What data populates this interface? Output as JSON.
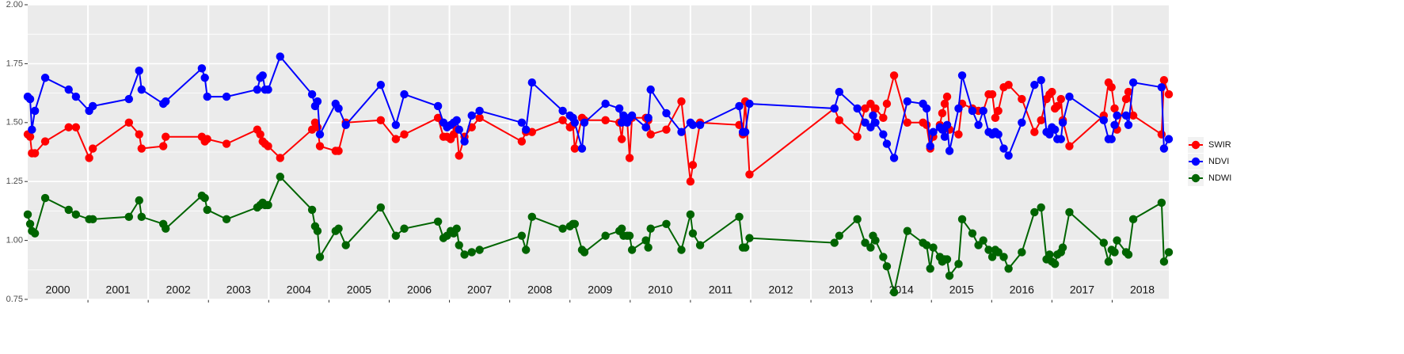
{
  "chart_data": {
    "type": "line",
    "x": [
      2000.0,
      2000.04,
      2000.07,
      2000.12,
      2000.29,
      2000.68,
      2000.8,
      2001.02,
      2001.08,
      2001.68,
      2001.85,
      2001.89,
      2002.25,
      2002.29,
      2002.89,
      2002.94,
      2002.98,
      2003.3,
      2003.81,
      2003.86,
      2003.9,
      2003.94,
      2003.99,
      2004.19,
      2004.72,
      2004.77,
      2004.81,
      2004.85,
      2005.11,
      2005.16,
      2005.28,
      2005.86,
      2006.11,
      2006.25,
      2006.81,
      2006.9,
      2006.96,
      2007.02,
      2007.07,
      2007.12,
      2007.16,
      2007.25,
      2007.37,
      2007.5,
      2008.2,
      2008.27,
      2008.37,
      2008.88,
      2009.0,
      2009.05,
      2009.08,
      2009.2,
      2009.24,
      2009.59,
      2009.82,
      2009.86,
      2009.89,
      2009.95,
      2009.99,
      2010.03,
      2010.26,
      2010.3,
      2010.34,
      2010.6,
      2010.85,
      2011.0,
      2011.04,
      2011.16,
      2011.81,
      2011.87,
      2011.91,
      2011.98,
      2013.39,
      2013.47,
      2013.77,
      2013.9,
      2013.99,
      2014.03,
      2014.07,
      2014.2,
      2014.26,
      2014.38,
      2014.6,
      2014.86,
      2014.92,
      2014.98,
      2015.03,
      2015.14,
      2015.18,
      2015.22,
      2015.26,
      2015.3,
      2015.45,
      2015.51,
      2015.68,
      2015.78,
      2015.86,
      2015.95,
      2016.01,
      2016.06,
      2016.11,
      2016.2,
      2016.28,
      2016.5,
      2016.71,
      2016.82,
      2016.91,
      2016.96,
      2017.0,
      2017.05,
      2017.09,
      2017.15,
      2017.18,
      2017.29,
      2017.86,
      2017.94,
      2017.99,
      2018.04,
      2018.08,
      2018.23,
      2018.27,
      2018.35,
      2018.82,
      2018.86,
      2018.94
    ],
    "series": [
      {
        "name": "SWIR",
        "color": "#ff0000",
        "values": [
          1.45,
          1.44,
          1.37,
          1.37,
          1.42,
          1.48,
          1.48,
          1.35,
          1.39,
          1.5,
          1.45,
          1.39,
          1.4,
          1.44,
          1.44,
          1.42,
          1.43,
          1.41,
          1.47,
          1.45,
          1.42,
          1.41,
          1.4,
          1.35,
          1.47,
          1.5,
          1.48,
          1.4,
          1.38,
          1.38,
          1.5,
          1.51,
          1.43,
          1.45,
          1.52,
          1.44,
          1.44,
          1.43,
          1.45,
          1.47,
          1.36,
          1.44,
          1.48,
          1.52,
          1.42,
          1.46,
          1.46,
          1.51,
          1.48,
          1.49,
          1.39,
          1.52,
          1.51,
          1.51,
          1.5,
          1.43,
          1.52,
          1.51,
          1.35,
          1.52,
          1.52,
          1.51,
          1.45,
          1.47,
          1.59,
          1.25,
          1.32,
          1.5,
          1.49,
          1.45,
          1.59,
          1.28,
          1.56,
          1.51,
          1.44,
          1.56,
          1.58,
          1.53,
          1.56,
          1.52,
          1.58,
          1.7,
          1.5,
          1.5,
          1.49,
          1.39,
          1.44,
          1.49,
          1.54,
          1.58,
          1.61,
          1.47,
          1.45,
          1.58,
          1.56,
          1.55,
          1.55,
          1.62,
          1.62,
          1.52,
          1.55,
          1.65,
          1.66,
          1.6,
          1.46,
          1.51,
          1.6,
          1.62,
          1.63,
          1.56,
          1.57,
          1.6,
          1.51,
          1.4,
          1.53,
          1.67,
          1.65,
          1.56,
          1.47,
          1.6,
          1.63,
          1.53,
          1.45,
          1.68,
          1.62
        ]
      },
      {
        "name": "NDVI",
        "color": "#0000ff",
        "values": [
          1.61,
          1.6,
          1.47,
          1.55,
          1.69,
          1.64,
          1.61,
          1.55,
          1.57,
          1.6,
          1.72,
          1.64,
          1.58,
          1.59,
          1.73,
          1.69,
          1.61,
          1.61,
          1.64,
          1.69,
          1.7,
          1.64,
          1.64,
          1.78,
          1.62,
          1.57,
          1.59,
          1.45,
          1.58,
          1.56,
          1.49,
          1.66,
          1.49,
          1.62,
          1.57,
          1.5,
          1.48,
          1.49,
          1.5,
          1.51,
          1.47,
          1.42,
          1.53,
          1.55,
          1.5,
          1.47,
          1.67,
          1.55,
          1.53,
          1.52,
          1.5,
          1.39,
          1.5,
          1.58,
          1.56,
          1.5,
          1.53,
          1.5,
          1.52,
          1.53,
          1.48,
          1.52,
          1.64,
          1.54,
          1.46,
          1.5,
          1.49,
          1.49,
          1.57,
          1.46,
          1.46,
          1.58,
          1.56,
          1.63,
          1.56,
          1.5,
          1.48,
          1.53,
          1.5,
          1.45,
          1.41,
          1.35,
          1.59,
          1.58,
          1.56,
          1.4,
          1.46,
          1.48,
          1.47,
          1.44,
          1.49,
          1.38,
          1.56,
          1.7,
          1.55,
          1.49,
          1.55,
          1.46,
          1.45,
          1.46,
          1.45,
          1.39,
          1.36,
          1.5,
          1.66,
          1.68,
          1.46,
          1.45,
          1.48,
          1.47,
          1.43,
          1.43,
          1.5,
          1.61,
          1.51,
          1.43,
          1.43,
          1.49,
          1.53,
          1.53,
          1.49,
          1.67,
          1.65,
          1.39,
          1.43
        ]
      },
      {
        "name": "NDWI",
        "color": "#006400",
        "values": [
          1.11,
          1.07,
          1.04,
          1.03,
          1.18,
          1.13,
          1.11,
          1.09,
          1.09,
          1.1,
          1.17,
          1.1,
          1.07,
          1.05,
          1.19,
          1.18,
          1.13,
          1.09,
          1.14,
          1.15,
          1.16,
          1.15,
          1.15,
          1.27,
          1.13,
          1.06,
          1.04,
          0.93,
          1.04,
          1.05,
          0.98,
          1.14,
          1.02,
          1.05,
          1.08,
          1.01,
          1.02,
          1.04,
          1.03,
          1.05,
          0.98,
          0.94,
          0.95,
          0.96,
          1.02,
          0.96,
          1.1,
          1.05,
          1.06,
          1.07,
          1.07,
          0.96,
          0.95,
          1.02,
          1.04,
          1.05,
          1.02,
          1.02,
          1.02,
          0.96,
          1.0,
          0.97,
          1.05,
          1.07,
          0.96,
          1.11,
          1.03,
          0.98,
          1.1,
          0.97,
          0.97,
          1.01,
          0.99,
          1.02,
          1.09,
          0.99,
          0.97,
          1.02,
          1.0,
          0.93,
          0.89,
          0.78,
          1.04,
          0.99,
          0.98,
          0.88,
          0.97,
          0.93,
          0.91,
          0.92,
          0.92,
          0.85,
          0.9,
          1.09,
          1.03,
          0.98,
          1.0,
          0.96,
          0.93,
          0.96,
          0.95,
          0.93,
          0.88,
          0.95,
          1.12,
          1.14,
          0.92,
          0.94,
          0.91,
          0.9,
          0.94,
          0.95,
          0.97,
          1.12,
          0.99,
          0.91,
          0.96,
          0.95,
          1.0,
          0.95,
          0.94,
          1.09,
          1.16,
          0.91,
          0.95
        ]
      }
    ],
    "xlim": [
      2000,
      2018.94
    ],
    "xticks": [
      {
        "value": 2000.5,
        "label": "2000"
      },
      {
        "value": 2001.5,
        "label": "2001"
      },
      {
        "value": 2002.5,
        "label": "2002"
      },
      {
        "value": 2003.5,
        "label": "2003"
      },
      {
        "value": 2004.5,
        "label": "2004"
      },
      {
        "value": 2005.5,
        "label": "2005"
      },
      {
        "value": 2006.5,
        "label": "2006"
      },
      {
        "value": 2007.5,
        "label": "2007"
      },
      {
        "value": 2008.5,
        "label": "2008"
      },
      {
        "value": 2009.5,
        "label": "2009"
      },
      {
        "value": 2010.5,
        "label": "2010"
      },
      {
        "value": 2011.5,
        "label": "2011"
      },
      {
        "value": 2012.5,
        "label": "2012"
      },
      {
        "value": 2013.5,
        "label": "2013"
      },
      {
        "value": 2014.5,
        "label": "2014"
      },
      {
        "value": 2015.5,
        "label": "2015"
      },
      {
        "value": 2016.5,
        "label": "2016"
      },
      {
        "value": 2017.5,
        "label": "2017"
      },
      {
        "value": 2018.5,
        "label": "2018"
      }
    ],
    "xgrid": [
      2001,
      2002,
      2003,
      2004,
      2005,
      2006,
      2007,
      2008,
      2009,
      2010,
      2011,
      2012,
      2013,
      2014,
      2015,
      2016,
      2017,
      2018
    ],
    "ylim": [
      0.75,
      2.0
    ],
    "yticks": [
      {
        "value": 0.75,
        "label": "0.75"
      },
      {
        "value": 1.0,
        "label": "1.00"
      },
      {
        "value": 1.25,
        "label": "1.25"
      },
      {
        "value": 1.5,
        "label": "1.50"
      },
      {
        "value": 1.75,
        "label": "1.75"
      },
      {
        "value": 2.0,
        "label": "2.00"
      }
    ],
    "yminor": [
      0.875,
      1.125,
      1.375,
      1.625,
      1.875
    ],
    "grid": true,
    "legend": "right"
  }
}
